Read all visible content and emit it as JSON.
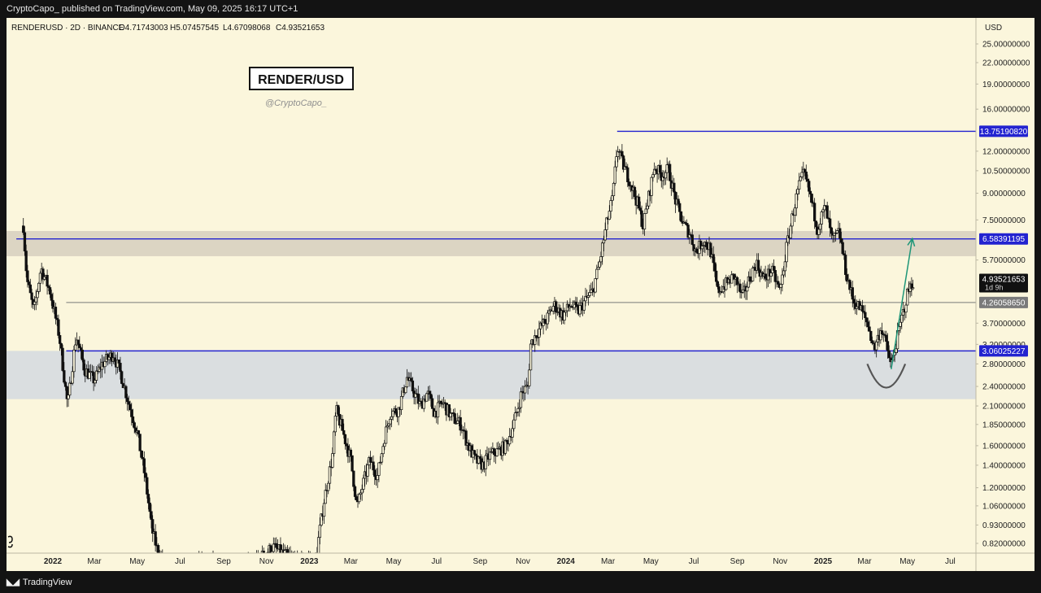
{
  "header": {
    "published_text": "CryptoCapo_ published on TradingView.com, May 09, 2025 16:17 UTC+1"
  },
  "footer": {
    "brand": "TradingView",
    "logo": "tradingview-logo-icon"
  },
  "chart_data": {
    "type": "candlestick",
    "symbol_line": {
      "symbol": "RENDERUSD · 2D · BINANCE",
      "open": "O4.71743003",
      "high": "H5.07457545",
      "low": "L4.67098068",
      "close": "C4.93521653"
    },
    "title_badge": "RENDER/USD",
    "watermark": "@CryptoCapo_",
    "currency": "USD",
    "scale": "log",
    "y_range": [
      0.78,
      28
    ],
    "y_ticks": [
      {
        "label": "25.00000000",
        "value": 25.0
      },
      {
        "label": "22.00000000",
        "value": 22.0
      },
      {
        "label": "19.00000000",
        "value": 19.0
      },
      {
        "label": "16.00000000",
        "value": 16.0
      },
      {
        "label": "12.00000000",
        "value": 12.0
      },
      {
        "label": "10.50000000",
        "value": 10.5
      },
      {
        "label": "9.00000000",
        "value": 9.0
      },
      {
        "label": "7.50000000",
        "value": 7.5
      },
      {
        "label": "5.70000000",
        "value": 5.7
      },
      {
        "label": "3.70000000",
        "value": 3.7
      },
      {
        "label": "3.20000000",
        "value": 3.2
      },
      {
        "label": "2.80000000",
        "value": 2.8
      },
      {
        "label": "2.40000000",
        "value": 2.4
      },
      {
        "label": "2.10000000",
        "value": 2.1
      },
      {
        "label": "1.85000000",
        "value": 1.85
      },
      {
        "label": "1.60000000",
        "value": 1.6
      },
      {
        "label": "1.40000000",
        "value": 1.4
      },
      {
        "label": "1.20000000",
        "value": 1.2
      },
      {
        "label": "1.06000000",
        "value": 1.06
      },
      {
        "label": "0.93000000",
        "value": 0.93
      },
      {
        "label": "0.82000000",
        "value": 0.82
      }
    ],
    "x_ticks": [
      {
        "label": "2022",
        "date": "2022-01-01",
        "bold": true
      },
      {
        "label": "Mar",
        "date": "2022-03-01"
      },
      {
        "label": "May",
        "date": "2022-05-01"
      },
      {
        "label": "Jul",
        "date": "2022-07-01"
      },
      {
        "label": "Sep",
        "date": "2022-09-01"
      },
      {
        "label": "Nov",
        "date": "2022-11-01"
      },
      {
        "label": "2023",
        "date": "2023-01-01",
        "bold": true
      },
      {
        "label": "Mar",
        "date": "2023-03-01"
      },
      {
        "label": "May",
        "date": "2023-05-01"
      },
      {
        "label": "Jul",
        "date": "2023-07-01"
      },
      {
        "label": "Sep",
        "date": "2023-09-01"
      },
      {
        "label": "Nov",
        "date": "2023-11-01"
      },
      {
        "label": "2024",
        "date": "2024-01-01",
        "bold": true
      },
      {
        "label": "Mar",
        "date": "2024-03-01"
      },
      {
        "label": "May",
        "date": "2024-05-01"
      },
      {
        "label": "Jul",
        "date": "2024-07-01"
      },
      {
        "label": "Sep",
        "date": "2024-09-01"
      },
      {
        "label": "Nov",
        "date": "2024-11-01"
      },
      {
        "label": "2025",
        "date": "2025-01-01",
        "bold": true
      },
      {
        "label": "Mar",
        "date": "2025-03-01"
      },
      {
        "label": "May",
        "date": "2025-05-01"
      },
      {
        "label": "Jul",
        "date": "2025-07-01"
      }
    ],
    "price_path": [
      [
        "2021-11-20",
        7.2
      ],
      [
        "2021-11-25",
        5.0
      ],
      [
        "2021-12-05",
        4.0
      ],
      [
        "2021-12-15",
        5.4
      ],
      [
        "2021-12-28",
        4.6
      ],
      [
        "2022-01-10",
        3.4
      ],
      [
        "2022-01-22",
        2.1
      ],
      [
        "2022-02-03",
        3.4
      ],
      [
        "2022-02-15",
        2.7
      ],
      [
        "2022-03-01",
        2.5
      ],
      [
        "2022-03-12",
        2.8
      ],
      [
        "2022-03-28",
        3.0
      ],
      [
        "2022-04-08",
        2.6
      ],
      [
        "2022-04-20",
        2.1
      ],
      [
        "2022-05-01",
        1.75
      ],
      [
        "2022-05-12",
        1.3
      ],
      [
        "2022-05-22",
        0.9
      ],
      [
        "2022-06-01",
        0.75
      ],
      [
        "2022-06-15",
        0.7
      ],
      [
        "2022-07-15",
        0.7
      ],
      [
        "2022-08-15",
        0.72
      ],
      [
        "2022-09-15",
        0.7
      ],
      [
        "2022-10-15",
        0.72
      ],
      [
        "2022-11-10",
        0.8
      ],
      [
        "2022-12-15",
        0.72
      ],
      [
        "2023-01-10",
        0.74
      ],
      [
        "2023-01-22",
        1.1
      ],
      [
        "2023-02-03",
        1.5
      ],
      [
        "2023-02-08",
        2.05
      ],
      [
        "2023-02-18",
        1.75
      ],
      [
        "2023-03-01",
        1.45
      ],
      [
        "2023-03-10",
        1.05
      ],
      [
        "2023-03-18",
        1.22
      ],
      [
        "2023-03-28",
        1.45
      ],
      [
        "2023-04-08",
        1.3
      ],
      [
        "2023-04-18",
        1.7
      ],
      [
        "2023-04-26",
        2.0
      ],
      [
        "2023-05-08",
        2.05
      ],
      [
        "2023-05-20",
        2.55
      ],
      [
        "2023-05-28",
        2.35
      ],
      [
        "2023-06-08",
        2.1
      ],
      [
        "2023-06-18",
        2.3
      ],
      [
        "2023-06-28",
        2.0
      ],
      [
        "2023-07-10",
        2.15
      ],
      [
        "2023-07-22",
        1.95
      ],
      [
        "2023-08-05",
        1.85
      ],
      [
        "2023-08-15",
        1.6
      ],
      [
        "2023-08-25",
        1.45
      ],
      [
        "2023-09-05",
        1.4
      ],
      [
        "2023-09-15",
        1.5
      ],
      [
        "2023-09-28",
        1.55
      ],
      [
        "2023-10-08",
        1.6
      ],
      [
        "2023-10-20",
        1.9
      ],
      [
        "2023-10-30",
        2.3
      ],
      [
        "2023-11-08",
        2.4
      ],
      [
        "2023-11-12",
        3.2
      ],
      [
        "2023-11-22",
        3.5
      ],
      [
        "2023-12-05",
        3.8
      ],
      [
        "2023-12-15",
        4.2
      ],
      [
        "2023-12-28",
        3.9
      ],
      [
        "2024-01-08",
        4.2
      ],
      [
        "2024-01-18",
        4.0
      ],
      [
        "2024-01-28",
        4.3
      ],
      [
        "2024-02-08",
        4.6
      ],
      [
        "2024-02-18",
        5.6
      ],
      [
        "2024-02-28",
        7.3
      ],
      [
        "2024-03-08",
        8.8
      ],
      [
        "2024-03-14",
        12.4
      ],
      [
        "2024-03-22",
        11.0
      ],
      [
        "2024-04-01",
        9.8
      ],
      [
        "2024-04-12",
        8.4
      ],
      [
        "2024-04-20",
        7.2
      ],
      [
        "2024-04-28",
        8.8
      ],
      [
        "2024-05-06",
        10.8
      ],
      [
        "2024-05-16",
        10.2
      ],
      [
        "2024-05-26",
        10.6
      ],
      [
        "2024-06-06",
        8.4
      ],
      [
        "2024-06-16",
        7.3
      ],
      [
        "2024-06-26",
        6.8
      ],
      [
        "2024-07-04",
        6.0
      ],
      [
        "2024-07-14",
        6.5
      ],
      [
        "2024-07-24",
        6.2
      ],
      [
        "2024-08-04",
        4.6
      ],
      [
        "2024-08-14",
        4.8
      ],
      [
        "2024-08-28",
        5.1
      ],
      [
        "2024-09-08",
        4.4
      ],
      [
        "2024-09-18",
        5.0
      ],
      [
        "2024-09-28",
        5.6
      ],
      [
        "2024-10-08",
        5.0
      ],
      [
        "2024-10-20",
        5.3
      ],
      [
        "2024-11-01",
        4.6
      ],
      [
        "2024-11-10",
        6.2
      ],
      [
        "2024-11-20",
        8.0
      ],
      [
        "2024-11-28",
        9.5
      ],
      [
        "2024-12-05",
        10.3
      ],
      [
        "2024-12-14",
        8.8
      ],
      [
        "2024-12-24",
        7.1
      ],
      [
        "2025-01-04",
        8.2
      ],
      [
        "2025-01-14",
        6.5
      ],
      [
        "2025-01-24",
        6.9
      ],
      [
        "2025-02-03",
        5.2
      ],
      [
        "2025-02-13",
        4.3
      ],
      [
        "2025-02-23",
        4.1
      ],
      [
        "2025-03-05",
        3.7
      ],
      [
        "2025-03-15",
        3.1
      ],
      [
        "2025-03-25",
        3.6
      ],
      [
        "2025-04-04",
        3.0
      ],
      [
        "2025-04-08",
        2.75
      ],
      [
        "2025-04-16",
        3.3
      ],
      [
        "2025-04-24",
        3.9
      ],
      [
        "2025-05-02",
        4.6
      ],
      [
        "2025-05-09",
        4.93
      ]
    ],
    "zones": [
      {
        "name": "upper-resistance-zone",
        "from": 5.85,
        "to": 6.95,
        "color": "#d8d2c0"
      },
      {
        "name": "lower-support-zone",
        "from": 2.2,
        "to": 3.06,
        "color": "#d6dbe0"
      }
    ],
    "horizontal_lines": [
      {
        "name": "ath-line",
        "value": 13.7519082,
        "label": "13.75190820",
        "color": "#2323d0",
        "start": "2024-03-14"
      },
      {
        "name": "resistance-line",
        "value": 6.58391195,
        "label": "6.58391195",
        "color": "#2323d0",
        "start": "2021-11-10"
      },
      {
        "name": "mid-line",
        "value": 4.2605865,
        "label": "4.26058650",
        "color": "#7a7a7a",
        "start": "2022-01-20"
      },
      {
        "name": "support-line",
        "value": 3.06025227,
        "label": "3.06025227",
        "color": "#2323d0",
        "start": "2022-01-20"
      }
    ],
    "current_price": {
      "value": 4.93521653,
      "label": "4.93521653",
      "countdown": "1d 9h"
    },
    "annotations": {
      "arrow": {
        "from_date": "2025-04-08",
        "from_value": 2.7,
        "to_date": "2025-05-08",
        "to_value": 6.6,
        "color": "#1e9678"
      },
      "rounded_bottom": {
        "from_date": "2025-03-05",
        "to_date": "2025-04-28",
        "value_top": 2.8,
        "value_bottom": 2.38,
        "color": "#555555"
      }
    },
    "colors": {
      "background": "#fbf6dc",
      "candle": "#111111",
      "axis_text": "#222222"
    }
  }
}
